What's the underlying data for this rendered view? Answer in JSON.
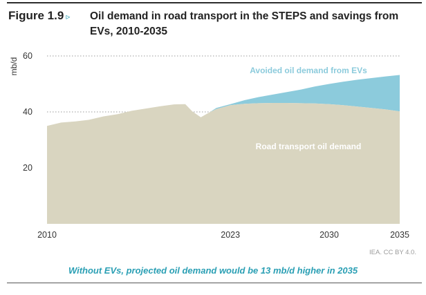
{
  "figure_label": "Figure 1.9",
  "figure_arrow": "▹",
  "title": "Oil demand in road transport in the STEPS and savings from EVs, 2010-2035",
  "source": "IEA. CC BY 4.0.",
  "caption": "Without EVs, projected oil demand would be 13 mb/d higher in 2035",
  "colors": {
    "road_transport": "#d9d5c0",
    "avoided": "#8ccbdc",
    "avoided_label": "#8ccbdc",
    "road_label": "#ffffff",
    "accent": "#2a9fb4"
  },
  "chart_data": {
    "type": "area",
    "ylabel": "mb/d",
    "xlabel": "",
    "xlim": [
      2010,
      2035
    ],
    "ylim": [
      0,
      60
    ],
    "yticks": [
      20,
      40,
      60
    ],
    "xticks": [
      2010,
      2023,
      2030,
      2035
    ],
    "grid": "horizontal dotted",
    "series": [
      {
        "name": "Road transport oil demand",
        "points": [
          [
            2010,
            35.0
          ],
          [
            2011,
            36.2
          ],
          [
            2012,
            36.6
          ],
          [
            2013,
            37.2
          ],
          [
            2014,
            38.4
          ],
          [
            2015,
            39.2
          ],
          [
            2016,
            40.4
          ],
          [
            2017,
            41.2
          ],
          [
            2018,
            42.0
          ],
          [
            2019,
            42.7
          ],
          [
            2019.8,
            42.8
          ],
          [
            2020.3,
            40.2
          ],
          [
            2020.9,
            38.1
          ],
          [
            2021.5,
            39.8
          ],
          [
            2022,
            41.0
          ],
          [
            2023,
            42.4
          ],
          [
            2024,
            42.9
          ],
          [
            2025,
            43.1
          ],
          [
            2026,
            43.2
          ],
          [
            2027,
            43.2
          ],
          [
            2028,
            43.1
          ],
          [
            2029,
            43.0
          ],
          [
            2030,
            42.8
          ],
          [
            2031,
            42.4
          ],
          [
            2032,
            41.9
          ],
          [
            2033,
            41.4
          ],
          [
            2034,
            40.9
          ],
          [
            2035,
            40.2
          ]
        ]
      },
      {
        "name": "Avoided oil demand from EVs",
        "points": [
          [
            2021.5,
            39.8
          ],
          [
            2022,
            41.4
          ],
          [
            2023,
            42.8
          ],
          [
            2024,
            44.2
          ],
          [
            2025,
            45.3
          ],
          [
            2026,
            46.2
          ],
          [
            2027,
            47.1
          ],
          [
            2028,
            48.0
          ],
          [
            2029,
            49.1
          ],
          [
            2030,
            50.0
          ],
          [
            2031,
            50.8
          ],
          [
            2032,
            51.5
          ],
          [
            2033,
            52.1
          ],
          [
            2034,
            52.7
          ],
          [
            2035,
            53.2
          ]
        ]
      }
    ]
  }
}
